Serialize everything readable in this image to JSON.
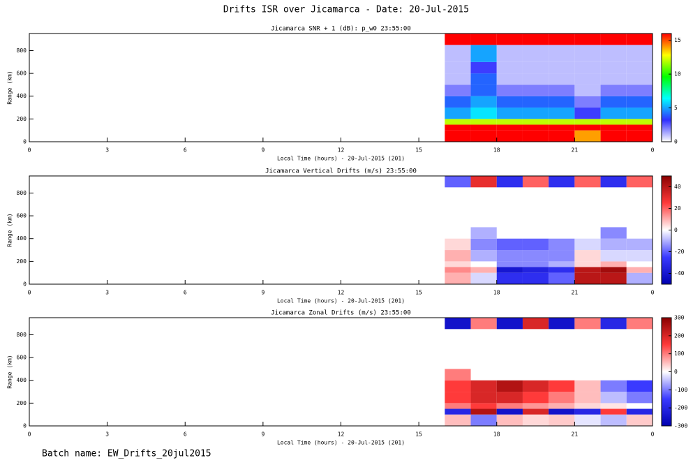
{
  "title": "Drifts ISR over Jicamarca - Date: 20-Jul-2015",
  "footer": "Batch name: EW_Drifts_20jul2015",
  "chart_data": [
    {
      "type": "heatmap",
      "title": "Jicamarca SNR + 1 (dB): p_w0 23:55:00",
      "xlabel": "Local Time (hours) - 20-Jul-2015 (201)",
      "ylabel": "Range (km)",
      "xlim": [
        0,
        24
      ],
      "xticks": [
        0,
        3,
        6,
        9,
        12,
        15,
        18,
        21,
        {
          "value": 24,
          "label": "0"
        }
      ],
      "ylim": [
        0,
        950
      ],
      "yticks": [
        0,
        200,
        400,
        600,
        800
      ],
      "x_bins": [
        16,
        17,
        18,
        19,
        20,
        21,
        22,
        23,
        24
      ],
      "y_bins": [
        0,
        100,
        150,
        200,
        300,
        400,
        500,
        600,
        700,
        850,
        950
      ],
      "values": [
        [
          16,
          16,
          16,
          16,
          16,
          14,
          16,
          16
        ],
        [
          16,
          16,
          16,
          16,
          16,
          16,
          16,
          16
        ],
        [
          12,
          12,
          12,
          12,
          12,
          12,
          12,
          12
        ],
        [
          5,
          6,
          5,
          5,
          5,
          3,
          5,
          5
        ],
        [
          4,
          5,
          4,
          4,
          4,
          2,
          4,
          4
        ],
        [
          2,
          4,
          2,
          2,
          2,
          1,
          2,
          2
        ],
        [
          1,
          4,
          1,
          1,
          1,
          1,
          1,
          1
        ],
        [
          1,
          3,
          1,
          1,
          1,
          1,
          1,
          1
        ],
        [
          1,
          5,
          1,
          1,
          1,
          1,
          1,
          1
        ],
        [
          16,
          16,
          16,
          16,
          16,
          16,
          16,
          16
        ]
      ],
      "colorbar": {
        "lim": [
          0,
          16
        ],
        "ticks": [
          0,
          5,
          10,
          15
        ],
        "colors": [
          "#ffffff",
          "#3030ff",
          "#00ffff",
          "#00ff00",
          "#ffff00",
          "#ff0000"
        ]
      }
    },
    {
      "type": "heatmap",
      "title": "Jicamarca Vertical Drifts (m/s) 23:55:00",
      "xlabel": "Local Time (hours) - 20-Jul-2015 (201)",
      "ylabel": "Range (km)",
      "xlim": [
        0,
        24
      ],
      "xticks": [
        0,
        3,
        6,
        9,
        12,
        15,
        18,
        21,
        {
          "value": 24,
          "label": "0"
        }
      ],
      "ylim": [
        0,
        950
      ],
      "yticks": [
        0,
        200,
        400,
        600,
        800
      ],
      "x_bins": [
        16,
        17,
        18,
        19,
        20,
        21,
        22,
        23,
        24
      ],
      "y_bins": [
        0,
        100,
        150,
        200,
        300,
        400,
        500,
        600,
        700,
        850,
        950
      ],
      "values": [
        [
          10,
          -5,
          -30,
          -30,
          -20,
          40,
          40,
          -10
        ],
        [
          15,
          10,
          -40,
          -35,
          -30,
          40,
          45,
          10
        ],
        [
          5,
          0,
          -15,
          -15,
          -10,
          5,
          10,
          0
        ],
        [
          10,
          -10,
          -15,
          -15,
          -15,
          5,
          -5,
          -5
        ],
        [
          5,
          -15,
          -20,
          -20,
          -15,
          -5,
          -10,
          -10
        ],
        [
          null,
          -10,
          null,
          null,
          null,
          null,
          -15,
          null
        ],
        [
          null,
          null,
          null,
          null,
          null,
          null,
          null,
          null
        ],
        [
          null,
          null,
          null,
          null,
          null,
          null,
          null,
          null
        ],
        [
          null,
          null,
          null,
          null,
          null,
          null,
          null,
          null
        ],
        [
          -20,
          30,
          -30,
          20,
          -30,
          20,
          -30,
          20
        ]
      ],
      "colorbar": {
        "lim": [
          -50,
          50
        ],
        "ticks": [
          -40,
          -20,
          0,
          20,
          40
        ],
        "colors": [
          "#0000b0",
          "#3a3aff",
          "#ffffff",
          "#ff3a3a",
          "#8b0000"
        ]
      }
    },
    {
      "type": "heatmap",
      "title": "Jicamarca Zonal Drifts (m/s) 23:55:00",
      "xlabel": "Local Time (hours) - 20-Jul-2015 (201)",
      "ylabel": "Range (km)",
      "xlim": [
        0,
        24
      ],
      "xticks": [
        0,
        3,
        6,
        9,
        12,
        15,
        18,
        21,
        {
          "value": 24,
          "label": "0"
        }
      ],
      "ylim": [
        0,
        950
      ],
      "yticks": [
        0,
        200,
        400,
        600,
        800
      ],
      "x_bins": [
        16,
        17,
        18,
        19,
        20,
        21,
        22,
        23,
        24
      ],
      "y_bins": [
        0,
        100,
        150,
        200,
        300,
        400,
        500,
        600,
        700,
        850,
        950
      ],
      "values": [
        [
          50,
          -100,
          50,
          30,
          40,
          -20,
          -50,
          40
        ],
        [
          -200,
          250,
          -250,
          200,
          -250,
          -200,
          150,
          -200
        ],
        [
          100,
          150,
          100,
          80,
          60,
          30,
          20,
          0
        ],
        [
          150,
          200,
          200,
          150,
          100,
          50,
          -50,
          -100
        ],
        [
          150,
          200,
          250,
          200,
          150,
          50,
          -100,
          -150
        ],
        [
          100,
          null,
          null,
          null,
          null,
          null,
          null,
          null
        ],
        [
          null,
          null,
          null,
          null,
          null,
          null,
          null,
          null
        ],
        [
          null,
          null,
          null,
          null,
          null,
          null,
          null,
          null
        ],
        [
          null,
          null,
          null,
          null,
          null,
          null,
          null,
          null
        ],
        [
          -250,
          100,
          -250,
          200,
          -250,
          100,
          -200,
          100
        ]
      ],
      "colorbar": {
        "lim": [
          -300,
          300
        ],
        "ticks": [
          -300,
          -200,
          -100,
          0,
          100,
          200,
          300
        ],
        "colors": [
          "#0000b0",
          "#3a3aff",
          "#ffffff",
          "#ff3a3a",
          "#8b0000"
        ]
      }
    }
  ]
}
